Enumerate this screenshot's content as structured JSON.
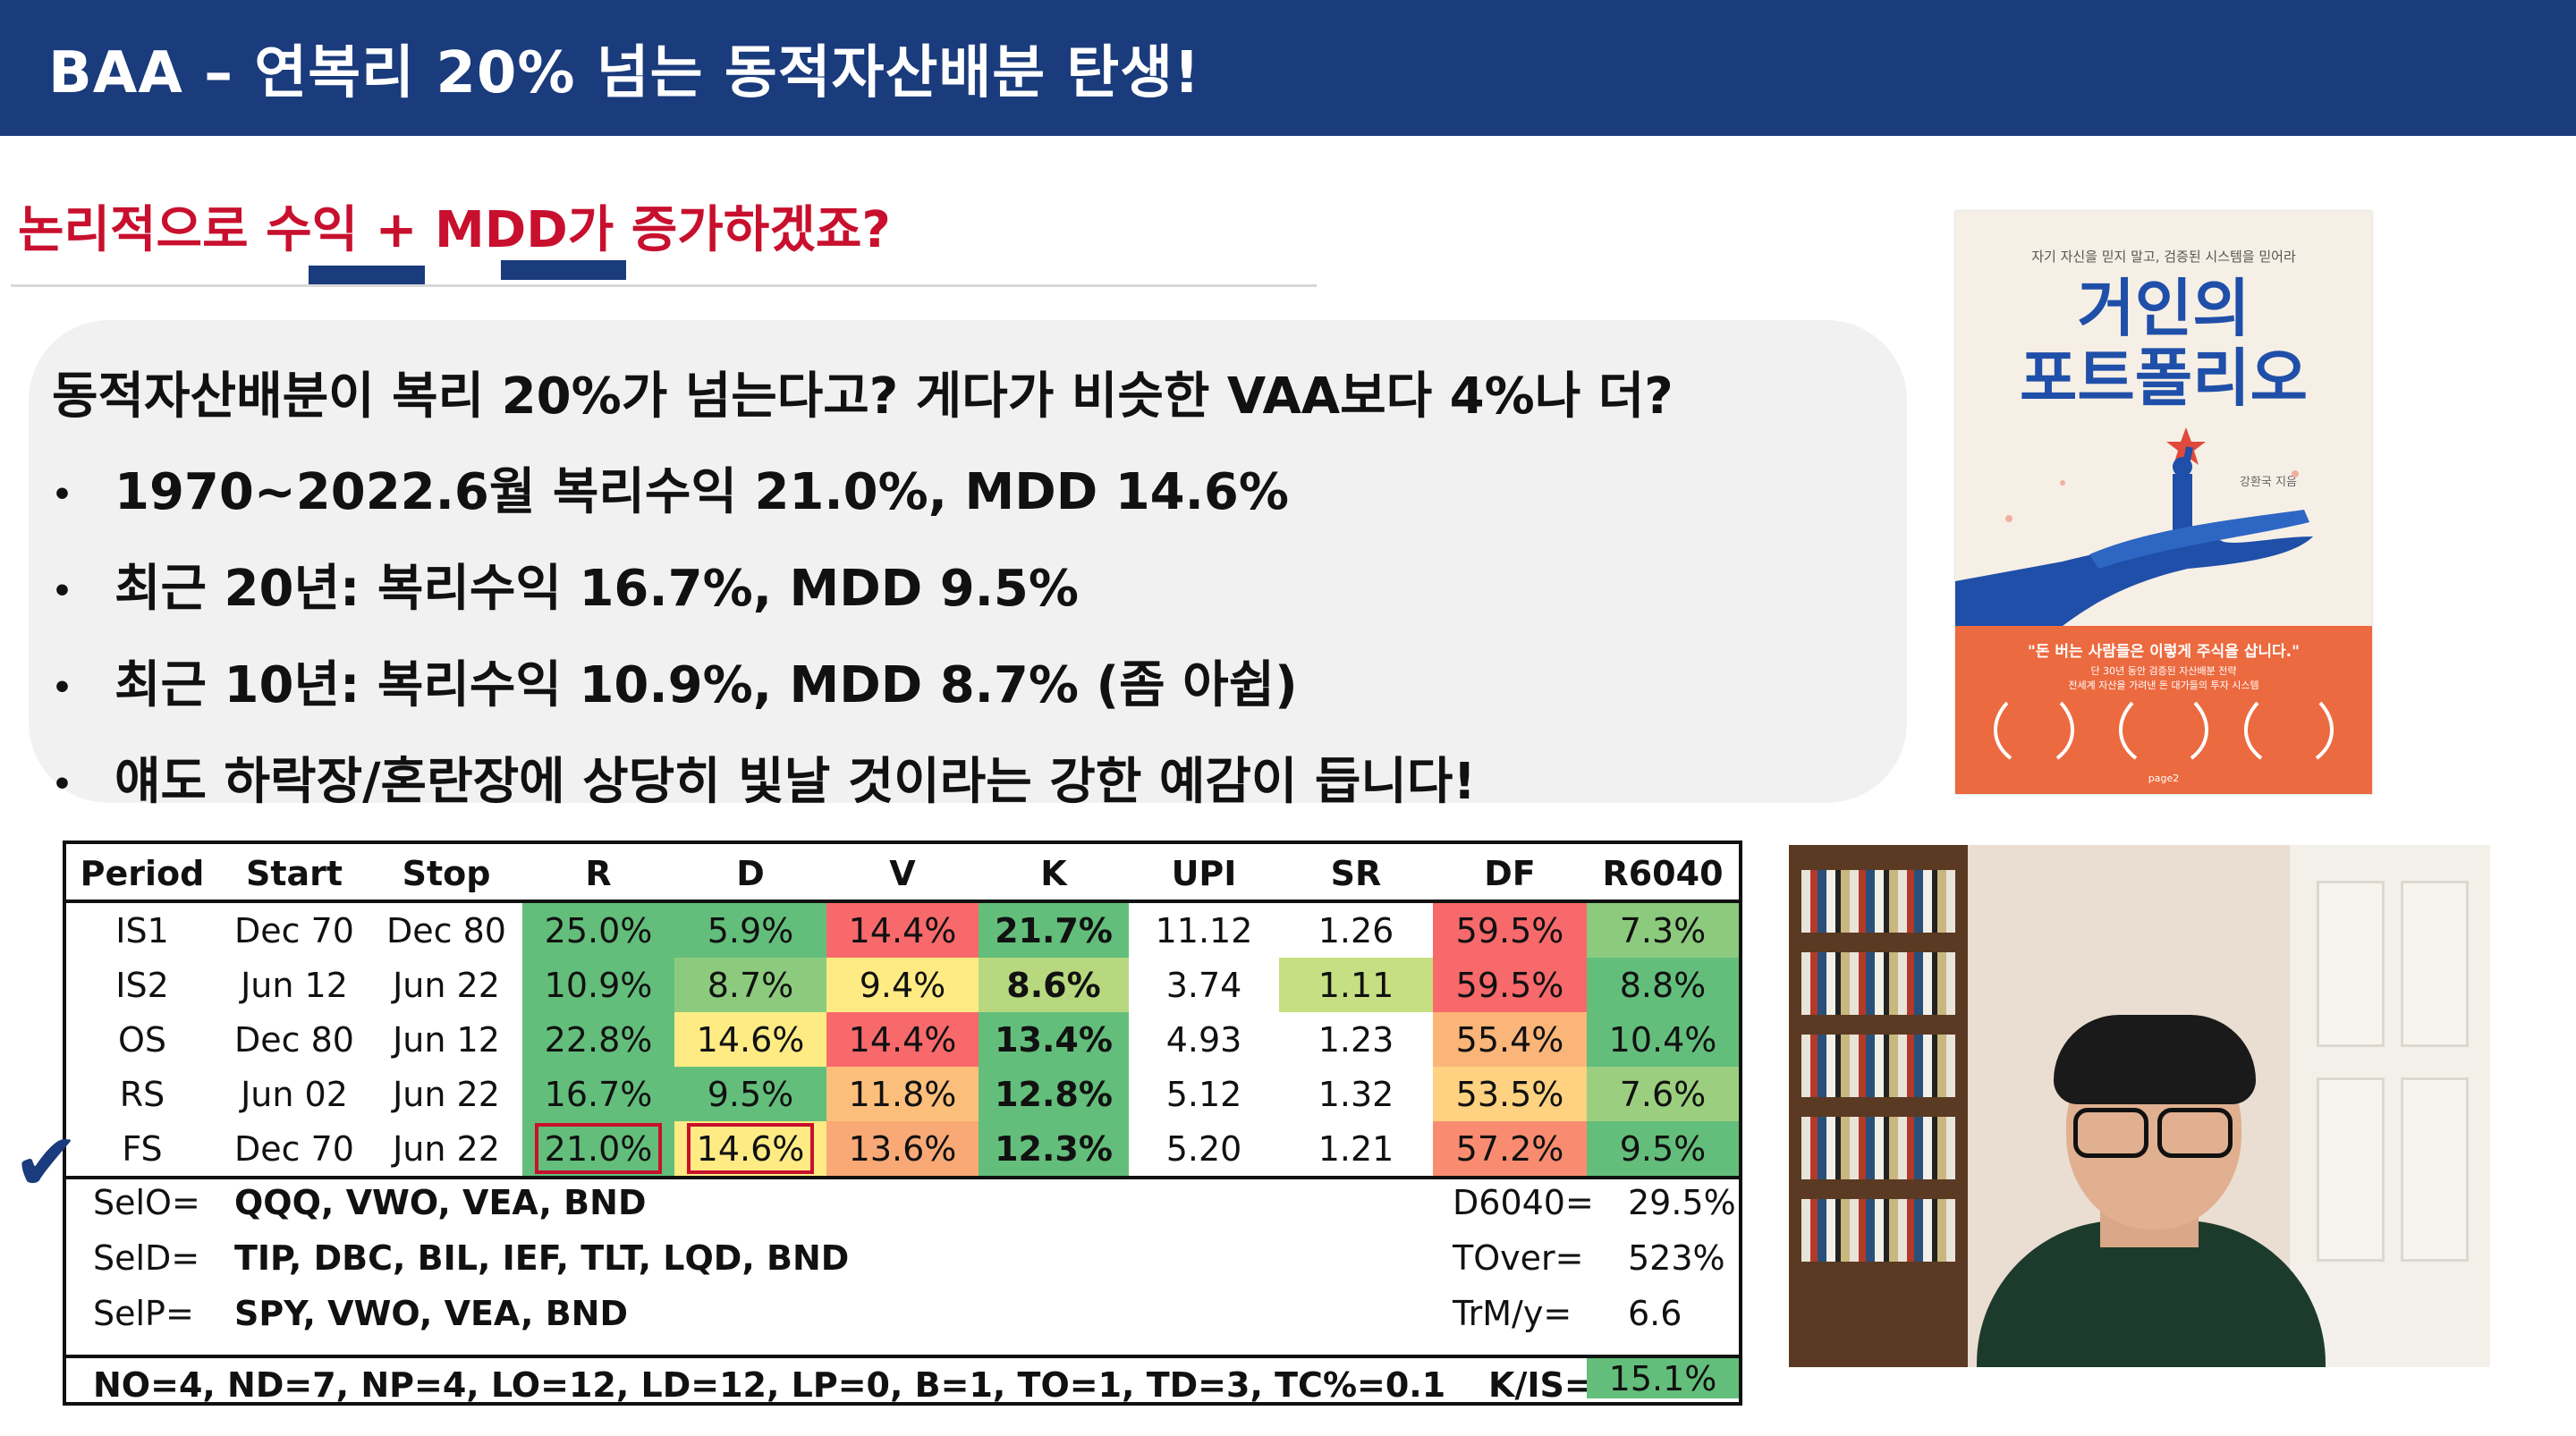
{
  "header": {
    "title": "BAA – 연복리 20% 넘는 동적자산배분 탄생!"
  },
  "subtitle": "논리적으로 수익 + MDD가 증가하겠죠?",
  "callout": {
    "heading": "동적자산배분이 복리 20%가 넘는다고? 게다가 비슷한 VAA보다 4%나 더?",
    "bullets": [
      "1970~2022.6월 복리수익 21.0%, MDD 14.6%",
      "최근 20년: 복리수익 16.7%, MDD 9.5%",
      "최근 10년: 복리수익 10.9%, MDD 8.7% (좀 아쉽)",
      "얘도 하락장/혼란장에 상당히 빛날 것이라는 강한 예감이 듭니다!"
    ]
  },
  "book": {
    "top_line": "자기 자신을 믿지 말고, 검증된 시스템을 믿어라",
    "title_line1": "거인의",
    "title_line2": "포트폴리오",
    "author": "강환국 지음",
    "quote": "\"돈 버는 사람들은 이렇게 주식을 삽니다.\"",
    "line1": "단 30년 동안 검증된 자산배분 전략",
    "line2": "전세계 자산을 가려낸 돈 대가들의 투자 시스템",
    "publisher": "page2",
    "colors": {
      "title": "#1f4fa8",
      "bottom": "#ec6a3f"
    }
  },
  "table": {
    "headers": [
      "Period",
      "Start",
      "Stop",
      "R",
      "D",
      "V",
      "K",
      "UPI",
      "SR",
      "DF",
      "R6040"
    ],
    "rows": [
      {
        "cells": [
          "IS1",
          "Dec 70",
          "Dec 80",
          "25.0%",
          "5.9%",
          "14.4%",
          "21.7%",
          "11.12",
          "1.26",
          "59.5%",
          "7.3%"
        ]
      },
      {
        "cells": [
          "IS2",
          "Jun 12",
          "Jun 22",
          "10.9%",
          "8.7%",
          "9.4%",
          "8.6%",
          "3.74",
          "1.11",
          "59.5%",
          "8.8%"
        ]
      },
      {
        "cells": [
          "OS",
          "Dec 80",
          "Jun 12",
          "22.8%",
          "14.6%",
          "14.4%",
          "13.4%",
          "4.93",
          "1.23",
          "55.4%",
          "10.4%"
        ]
      },
      {
        "cells": [
          "RS",
          "Jun 02",
          "Jun 22",
          "16.7%",
          "9.5%",
          "11.8%",
          "12.8%",
          "5.12",
          "1.32",
          "53.5%",
          "7.6%"
        ]
      },
      {
        "cells": [
          "FS",
          "Dec 70",
          "Jun 22",
          "21.0%",
          "14.6%",
          "13.6%",
          "12.3%",
          "5.20",
          "1.21",
          "57.2%",
          "9.5%"
        ]
      }
    ],
    "cell_colors": [
      [
        "",
        "",
        "",
        "#63be7b",
        "#63be7b",
        "#f8696b",
        "#63be7b",
        "",
        "",
        "#f8696b",
        "#8ccb7e"
      ],
      [
        "",
        "",
        "",
        "#63be7b",
        "#8ccb7e",
        "#ffeb84",
        "#b8d880",
        "",
        "#c6df82",
        "#f8696b",
        "#63be7b"
      ],
      [
        "",
        "",
        "",
        "#63be7b",
        "#ffeb84",
        "#f8696b",
        "#63be7b",
        "",
        "",
        "#fbb579",
        "#63be7b"
      ],
      [
        "",
        "",
        "",
        "#63be7b",
        "#63be7b",
        "#fcbf7b",
        "#63be7b",
        "",
        "",
        "#fed280",
        "#9bcf7f"
      ],
      [
        "",
        "",
        "",
        "#63be7b",
        "#ffeb84",
        "#f9a975",
        "#63be7b",
        "",
        "",
        "#f98c70",
        "#63be7b"
      ]
    ],
    "sel": [
      {
        "label": "SelO=",
        "value": "QQQ, VWO, VEA, BND",
        "right_label": "D6040=",
        "right_value": "29.5%"
      },
      {
        "label": "SelD=",
        "value": "TIP, DBC, BIL, IEF, TLT, LQD, BND",
        "right_label": "TOver=",
        "right_value": "523%"
      },
      {
        "label": "SelP=",
        "value": "SPY, VWO, VEA, BND",
        "right_label": "TrM/y=",
        "right_value": "6.6"
      }
    ],
    "params": "NO=4, ND=7, NP=4, LO=12, LD=12, LP=0, B=1, TO=1, TD=3,  TC%=0.1",
    "kis_label": "K/IS=",
    "kis_value": "15.1%"
  },
  "check_mark": "✔"
}
